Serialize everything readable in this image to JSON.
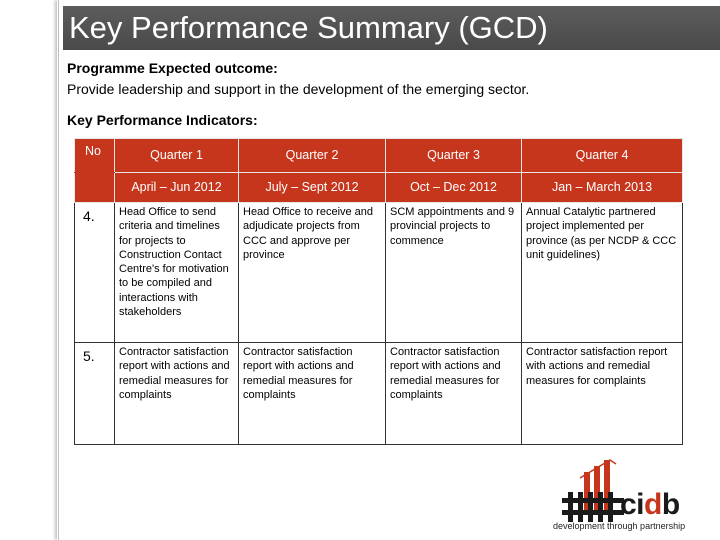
{
  "title": "Key Performance Summary (GCD)",
  "outcome": {
    "heading": "Programme Expected outcome:",
    "text": "Provide leadership and support in the development of the emerging sector."
  },
  "kpi_heading": "Key Performance Indicators:",
  "table": {
    "header_no": "No",
    "quarters": [
      "Quarter 1",
      "Quarter 2",
      "Quarter 3",
      "Quarter 4"
    ],
    "periods": [
      "April – Jun 2012",
      "July – Sept 2012",
      "Oct – Dec 2012",
      "Jan  – March 2013"
    ],
    "rows": [
      {
        "no": "4.",
        "cells": [
          "Head Office to send criteria and timelines for projects to Construction Contact Centre's for motivation to be compiled and interactions with stakeholders",
          "Head Office to receive and adjudicate projects from CCC  and approve per province",
          "SCM appointments and 9 provincial projects to commence",
          "Annual Catalytic partnered project implemented per province (as per NCDP & CCC unit guidelines)"
        ]
      },
      {
        "no": "5.",
        "cells": [
          "Contractor satisfaction report with actions and remedial measures for complaints",
          "Contractor satisfaction report with actions and remedial measures for complaints",
          "Contractor satisfaction report with actions and remedial measures for complaints",
          "Contractor satisfaction report with actions and remedial measures for complaints"
        ]
      }
    ]
  },
  "logo": {
    "wordmark_dark": "ci",
    "wordmark_red": "d",
    "wordmark_dark2": "b",
    "tagline": "development through partnership"
  },
  "colors": {
    "header_red": "#c6361d",
    "title_bar": "#545454"
  }
}
